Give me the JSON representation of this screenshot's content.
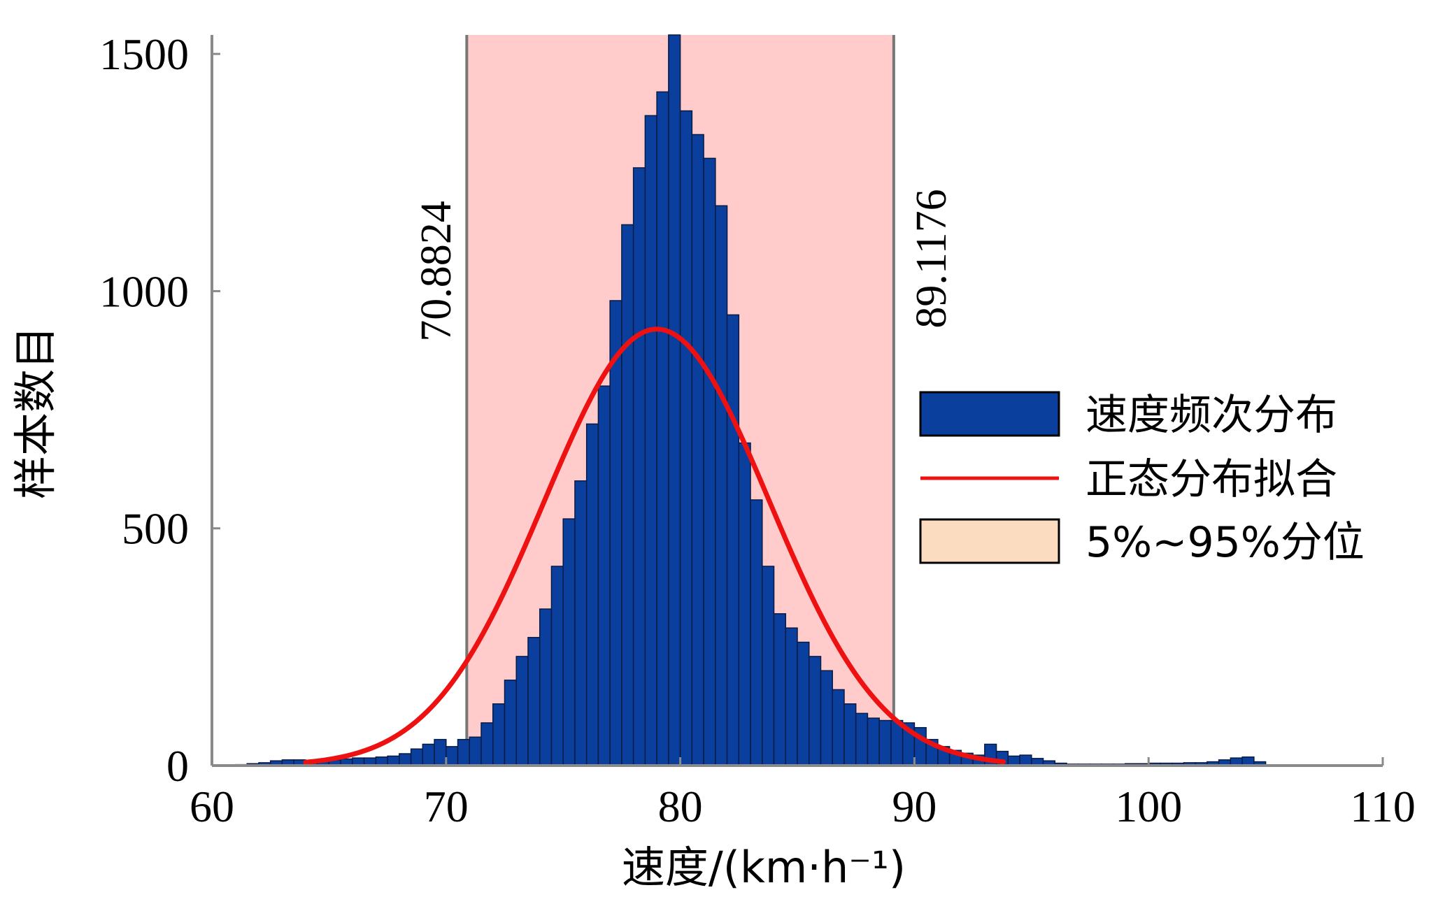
{
  "chart_data": {
    "type": "bar",
    "xlabel": "速度/(km·h⁻¹)",
    "ylabel": "样本数目",
    "xlim": [
      60,
      110
    ],
    "ylim": [
      0,
      1540
    ],
    "x_ticks": [
      "60",
      "70",
      "80",
      "90",
      "100",
      "110"
    ],
    "y_ticks": [
      "0",
      "500",
      "1000",
      "1500"
    ],
    "bin_width": 0.5,
    "bins_x": [
      61.0,
      61.5,
      62.0,
      62.5,
      63.0,
      63.5,
      64.0,
      64.5,
      65.0,
      65.5,
      66.0,
      66.5,
      67.0,
      67.5,
      68.0,
      68.5,
      69.0,
      69.5,
      70.0,
      70.5,
      71.0,
      71.5,
      72.0,
      72.5,
      73.0,
      73.5,
      74.0,
      74.5,
      75.0,
      75.5,
      76.0,
      76.5,
      77.0,
      77.5,
      78.0,
      78.5,
      79.0,
      79.5,
      80.0,
      80.5,
      81.0,
      81.5,
      82.0,
      82.5,
      83.0,
      83.5,
      84.0,
      84.5,
      85.0,
      85.5,
      86.0,
      86.5,
      87.0,
      87.5,
      88.0,
      88.5,
      89.0,
      89.5,
      90.0,
      90.5,
      91.0,
      91.5,
      92.0,
      92.5,
      93.0,
      93.5,
      94.0,
      94.5,
      95.0,
      95.5,
      96.0,
      96.5,
      97.0,
      97.5,
      98.0,
      98.5,
      99.0,
      99.5,
      100.0,
      100.5,
      101.0,
      101.5,
      102.0,
      102.5,
      103.0,
      103.5,
      104.0,
      104.5
    ],
    "counts": [
      2,
      4,
      6,
      10,
      12,
      12,
      10,
      10,
      12,
      14,
      16,
      16,
      18,
      20,
      25,
      35,
      45,
      55,
      40,
      55,
      60,
      90,
      130,
      180,
      230,
      270,
      330,
      420,
      520,
      600,
      720,
      800,
      980,
      1140,
      1260,
      1370,
      1420,
      1540,
      1380,
      1330,
      1280,
      1180,
      950,
      680,
      560,
      420,
      320,
      290,
      260,
      230,
      200,
      160,
      130,
      110,
      100,
      95,
      95,
      90,
      80,
      55,
      40,
      32,
      26,
      22,
      45,
      30,
      20,
      22,
      15,
      10,
      5,
      3,
      3,
      3,
      3,
      3,
      4,
      4,
      5,
      5,
      5,
      6,
      6,
      8,
      12,
      16,
      18,
      8
    ],
    "normal_fit": {
      "mean": 79.0,
      "sd": 4.8,
      "peak": 920,
      "x_range": [
        64.0,
        93.8
      ]
    },
    "percentile_band": {
      "low": 70.8824,
      "high": 89.1176,
      "low_label": "70.8824",
      "high_label": "89.1176"
    },
    "legend": [
      {
        "label": "速度频次分布",
        "kind": "bar",
        "color": "#0b3f9e"
      },
      {
        "label": "正态分布拟合",
        "kind": "line",
        "color": "#ee1111"
      },
      {
        "label": "5%~95%分位",
        "kind": "patch",
        "color": "#fcdcc0"
      }
    ],
    "legend_position": "right",
    "grid": false,
    "colors": {
      "bar": "#0b3f9e",
      "bar_edge": "#071b45",
      "fit": "#ee1111",
      "band": "#ffcbcb",
      "band_edge": "#777777"
    }
  }
}
